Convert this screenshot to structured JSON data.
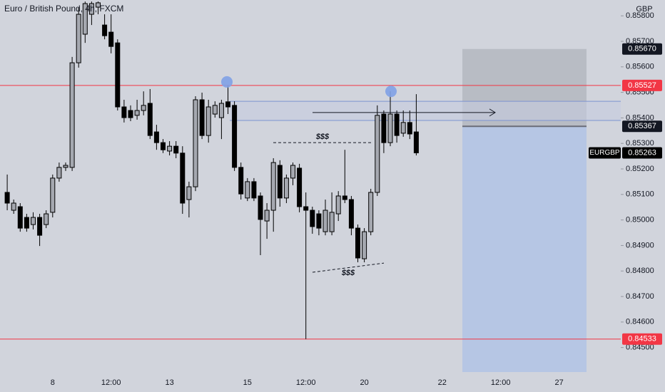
{
  "chart_data": {
    "type": "candlestick",
    "title": "Euro / British Pound, 4h, FXCM",
    "currency": "GBP",
    "symbol": "EURGBP",
    "categories": [
      null,
      null,
      null,
      null,
      null,
      null,
      null,
      null,
      "8",
      null,
      null,
      null,
      null,
      null,
      null,
      null,
      null,
      "12:00",
      null,
      null,
      null,
      null,
      null,
      null,
      null,
      null,
      "13",
      null,
      null,
      null,
      null,
      null,
      null,
      null,
      null,
      null,
      null,
      null,
      "15",
      null,
      null,
      null,
      null,
      null,
      null,
      null,
      null,
      "12:00",
      null,
      null,
      null,
      null,
      null,
      null,
      null,
      null,
      "20",
      null,
      null,
      null,
      null,
      null,
      null,
      null,
      null,
      null,
      null,
      null,
      "22",
      null,
      null,
      null,
      null,
      null,
      null,
      null,
      null,
      "12:00",
      null,
      null,
      null,
      null,
      null,
      null,
      null,
      null,
      "27",
      null,
      null,
      null,
      null,
      null,
      null
    ],
    "open": [
      null,
      0.85108,
      0.85038,
      0.85052,
      0.8501,
      0.84982,
      0.8501,
      0.84982,
      0.8503,
      0.85164,
      0.85206,
      0.85206,
      0.85616,
      0.85728,
      0.85806,
      0.85834,
      0.85764,
      0.85736,
      0.85694,
      0.85443,
      0.85429,
      0.8541,
      0.85429,
      0.85457,
      0.85345,
      0.85303,
      0.8527,
      0.85289,
      0.85262,
      0.8508,
      0.8513,
      0.85471,
      0.85331,
      0.85415,
      0.85401,
      0.85463,
      0.85449,
      0.85206,
      0.85086,
      0.8515,
      0.85094,
      0.84996,
      0.85038,
      0.85214,
      0.85086,
      0.85164,
      0.85203,
      0.85052,
      0.85038,
      0.85024,
      0.84954,
      0.84954,
      0.85024,
      0.85094,
      0.8508,
      0.84968,
      0.84848,
      0.84954,
      0.85108,
      0.85415,
      0.85303,
      0.85415,
      0.8534,
      0.85382,
      0.85345,
      null,
      null,
      null,
      null,
      null,
      null,
      null,
      null,
      null,
      null,
      null,
      null,
      null,
      null,
      null,
      null,
      null,
      null,
      null,
      null,
      null,
      null,
      null,
      null,
      null,
      null,
      null,
      null
    ],
    "high": [
      null,
      0.85178,
      0.8508,
      0.85066,
      0.85024,
      0.8503,
      0.85024,
      0.85038,
      0.85178,
      0.85225,
      0.85225,
      0.85639,
      0.85834,
      0.85856,
      0.85856,
      0.85856,
      0.85806,
      0.85806,
      0.85708,
      0.85471,
      0.85449,
      0.85471,
      0.85504,
      0.85513,
      0.85373,
      0.85317,
      0.85309,
      0.85309,
      0.85289,
      0.8515,
      0.85485,
      0.85499,
      0.85471,
      0.85465,
      0.85471,
      0.85527,
      0.85465,
      0.85225,
      0.85164,
      0.85164,
      0.85108,
      0.85066,
      0.85242,
      0.85234,
      0.85178,
      0.85225,
      0.8522,
      0.85108,
      0.85052,
      0.85038,
      0.8508,
      0.85108,
      0.85113,
      0.85275,
      0.85094,
      0.84982,
      0.84968,
      0.85122,
      0.85449,
      0.85429,
      0.85504,
      0.85429,
      0.85429,
      0.85429,
      0.85493,
      null,
      null,
      null,
      null,
      null,
      null,
      null,
      null,
      null,
      null,
      null,
      null,
      null,
      null,
      null,
      null,
      null,
      null,
      null,
      null,
      null,
      null,
      null,
      null,
      null,
      null,
      null,
      null
    ],
    "low": [
      null,
      0.85038,
      0.85024,
      0.84954,
      0.84954,
      0.84963,
      0.84898,
      0.84968,
      0.8501,
      0.8515,
      0.85192,
      0.85192,
      0.85597,
      0.85694,
      0.85764,
      0.85806,
      0.85708,
      0.85653,
      0.85429,
      0.85382,
      0.85387,
      0.85393,
      0.8541,
      0.85317,
      0.85275,
      0.85262,
      0.85253,
      0.85242,
      0.85024,
      0.8501,
      0.85113,
      0.85317,
      0.85303,
      0.85401,
      0.85317,
      0.85415,
      0.85192,
      0.8508,
      0.85074,
      0.85074,
      0.84862,
      0.84926,
      0.84954,
      0.85052,
      0.85066,
      0.85136,
      0.8503,
      0.84533,
      0.84946,
      0.8494,
      0.8494,
      0.8494,
      0.84996,
      0.85066,
      0.8494,
      0.84834,
      0.84834,
      0.8494,
      0.85094,
      0.85262,
      0.85289,
      0.85303,
      0.85326,
      0.85317,
      0.85253,
      null,
      null,
      null,
      null,
      null,
      null,
      null,
      null,
      null,
      null,
      null,
      null,
      null,
      null,
      null,
      null,
      null,
      null,
      null,
      null,
      null,
      null,
      null,
      null,
      null,
      null,
      null,
      null
    ],
    "close": [
      null,
      0.85066,
      0.85066,
      0.84968,
      0.84968,
      0.8501,
      0.8494,
      0.85024,
      0.85164,
      0.85206,
      0.85214,
      0.85616,
      0.85806,
      0.85848,
      0.85848,
      0.85851,
      0.85722,
      0.8568,
      0.85443,
      0.85401,
      0.85401,
      0.85429,
      0.85449,
      0.85331,
      0.85303,
      0.85275,
      0.85289,
      0.85262,
      0.85066,
      0.8513,
      0.85471,
      0.85331,
      0.85443,
      0.85449,
      0.85457,
      0.85443,
      0.85206,
      0.85102,
      0.8515,
      0.85086,
      0.85002,
      0.85038,
      0.85225,
      0.85086,
      0.85164,
      0.85214,
      0.85052,
      0.85038,
      0.84974,
      0.84968,
      0.85038,
      0.8503,
      0.85094,
      0.8508,
      0.84968,
      0.84851,
      0.84954,
      0.85108,
      0.8541,
      0.85303,
      0.85415,
      0.85331,
      0.85382,
      0.85337,
      0.85263,
      null,
      null,
      null,
      null,
      null,
      null,
      null,
      null,
      null,
      null,
      null,
      null,
      null,
      null,
      null,
      null,
      null,
      null,
      null,
      null,
      null,
      null,
      null,
      null,
      null,
      null,
      null,
      null
    ],
    "up_color": "#a5a8b0",
    "down_color": "#000000",
    "ylim": [
      0.84397,
      0.85862
    ],
    "yticks": [
      {
        "value": 0.845,
        "label": "0.84500"
      },
      {
        "value": 0.846,
        "label": "0.84600"
      },
      {
        "value": 0.847,
        "label": "0.84700"
      },
      {
        "value": 0.848,
        "label": "0.84800"
      },
      {
        "value": 0.849,
        "label": "0.84900"
      },
      {
        "value": 0.85,
        "label": "0.85000"
      },
      {
        "value": 0.851,
        "label": "0.85100"
      },
      {
        "value": 0.852,
        "label": "0.85200"
      },
      {
        "value": 0.853,
        "label": "0.85300"
      },
      {
        "value": 0.854,
        "label": "0.85400"
      },
      {
        "value": 0.855,
        "label": "0.85500"
      },
      {
        "value": 0.856,
        "label": "0.85600"
      },
      {
        "value": 0.857,
        "label": "0.85700"
      },
      {
        "value": 0.858,
        "label": "0.85800"
      }
    ],
    "levels": [
      {
        "value": 0.85527,
        "label": "0.85527",
        "color": "#f23645"
      },
      {
        "value": 0.84533,
        "label": "0.84533",
        "color": "#f23645"
      }
    ],
    "zone": [
      0.85465,
      0.8539
    ],
    "position": {
      "target": {
        "value": 0.8567,
        "label": "0.85670"
      },
      "entry": {
        "value": 0.85367,
        "label": "0.85367"
      },
      "stop": 0.84404
    },
    "last": {
      "value": 0.85263,
      "label": "0.85263"
    },
    "annotations": [
      {
        "text": "$$$",
        "values": [
          0.85303,
          0.85303
        ]
      },
      {
        "text": "$$$",
        "values": [
          0.84795,
          0.84831
        ]
      }
    ],
    "arrow": 0.85421,
    "markers": [
      0.85541,
      0.85504
    ]
  }
}
